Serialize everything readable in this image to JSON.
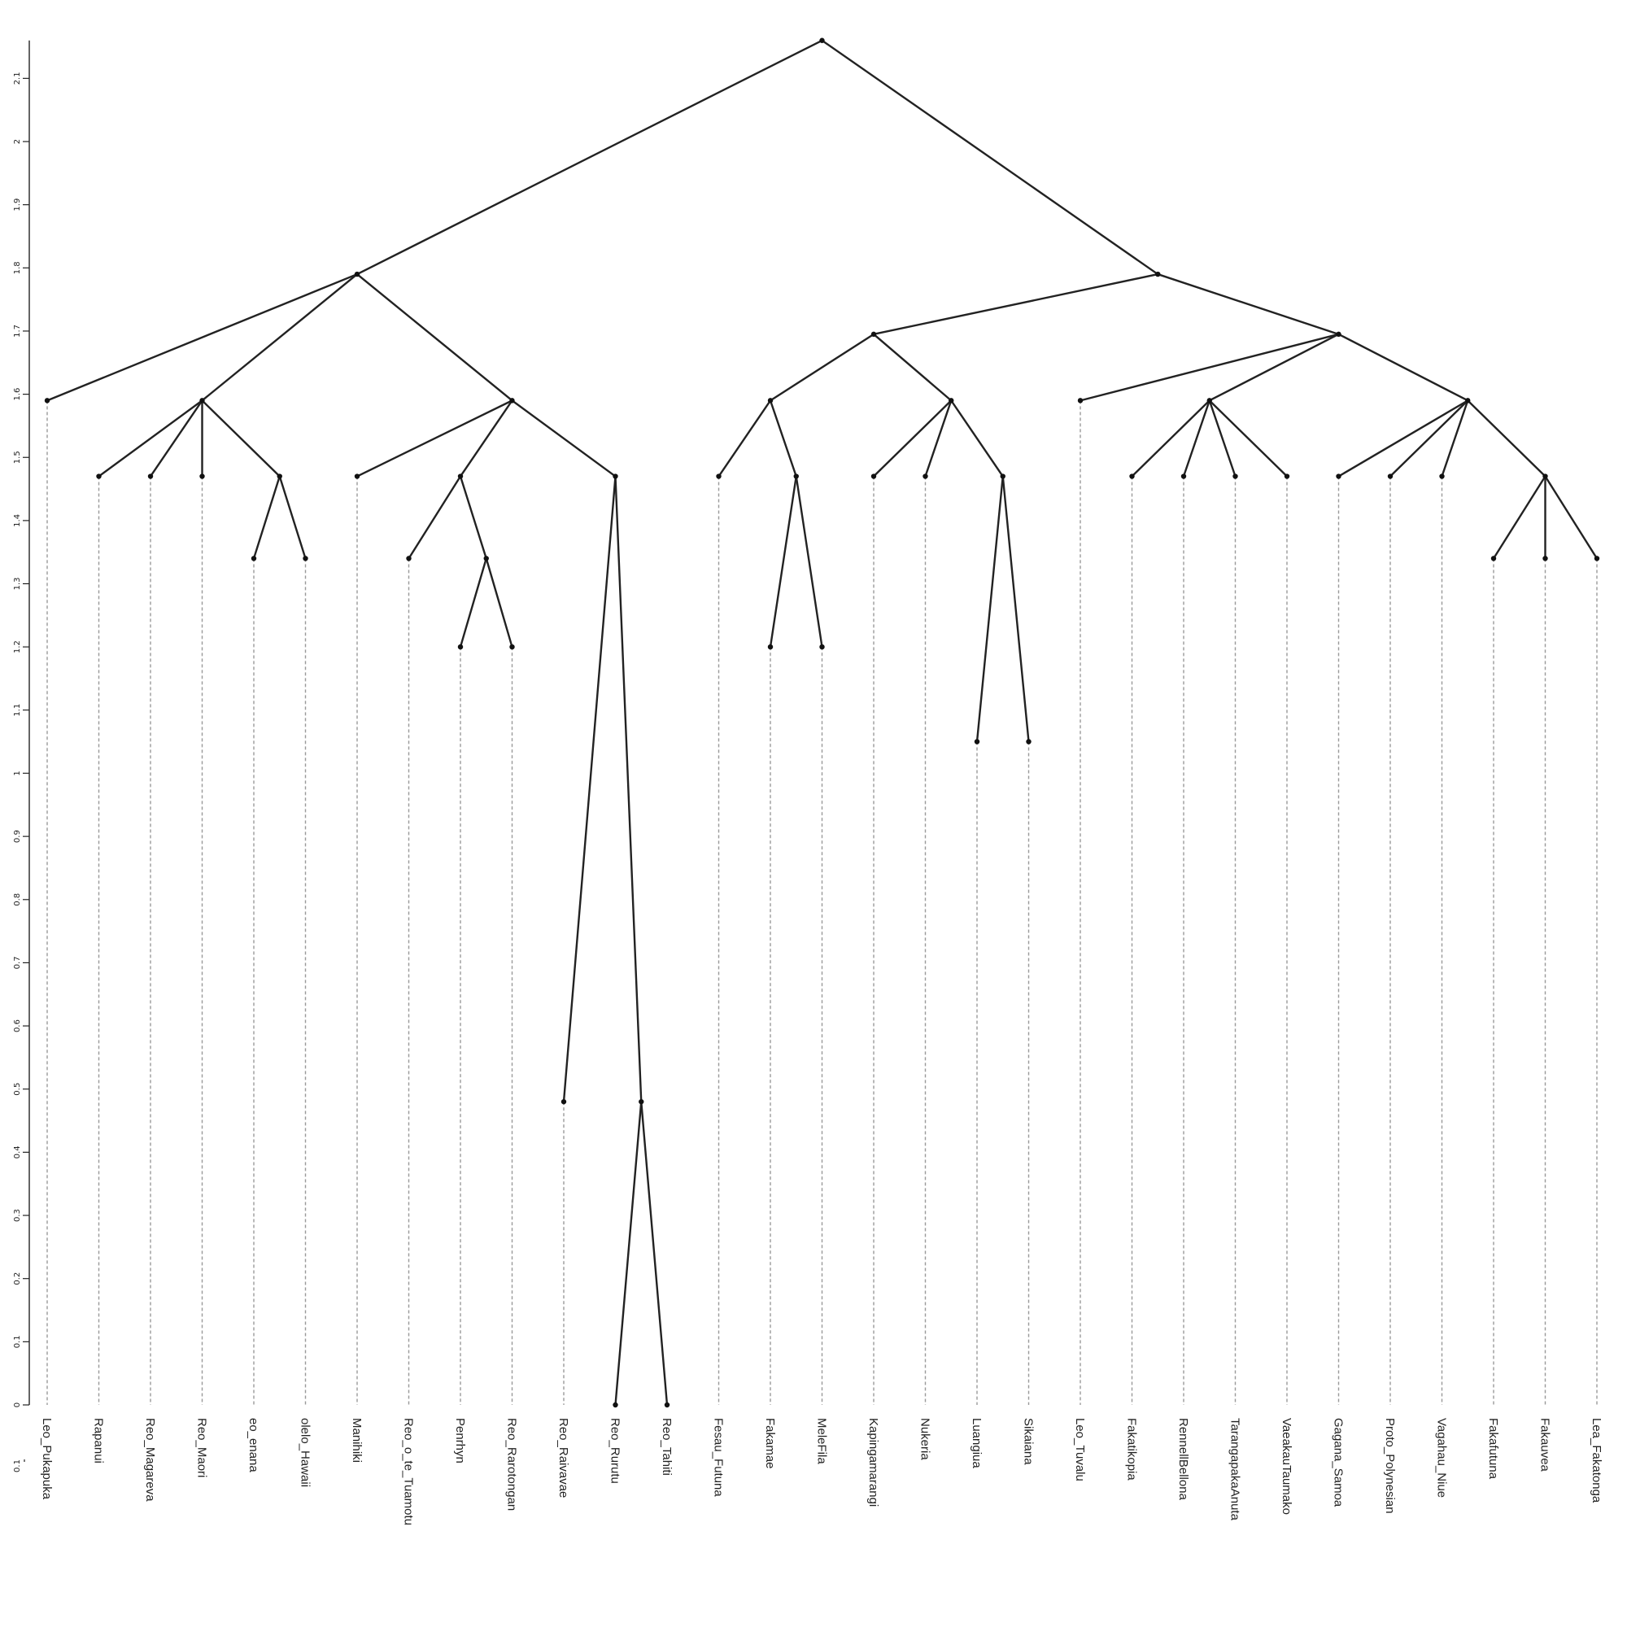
{
  "chart_data": {
    "type": "dendrogram",
    "yaxis": {
      "range": [
        0,
        2.16
      ],
      "ticks": [
        "0",
        "0.1",
        "0.2",
        "0.3",
        "0.4",
        "0.5",
        "0.6",
        "0.7",
        "0.8",
        "0.9",
        "1",
        "1.1",
        "1.2",
        "1.3",
        "1.4",
        "1.5",
        "1.6",
        "1.7",
        "1.8",
        "1.9",
        "2",
        "2.1"
      ],
      "extra_label": "0.1"
    },
    "leaves": [
      {
        "label": "Leo_Pukapuka",
        "height": 1.59
      },
      {
        "label": "Rapanui",
        "height": 1.47
      },
      {
        "label": "Reo_Magareva",
        "height": 1.47
      },
      {
        "label": "Reo_Maori",
        "height": 1.47
      },
      {
        "label": "eo_enana",
        "height": 1.34
      },
      {
        "label": "olelo_Hawaii",
        "height": 1.34
      },
      {
        "label": "Manihiki",
        "height": 1.47
      },
      {
        "label": "Reo_o_te_Tuamotu",
        "height": 1.34
      },
      {
        "label": "Penrhyn",
        "height": 1.2
      },
      {
        "label": "Reo_Rarotongan",
        "height": 1.2
      },
      {
        "label": "Reo_Raivavae",
        "height": 0.48
      },
      {
        "label": "Reo_Rurutu",
        "height": 0
      },
      {
        "label": "Reo_Tahiti",
        "height": 0
      },
      {
        "label": "Fesau_Futuna",
        "height": 1.47
      },
      {
        "label": "Fakamae",
        "height": 1.2
      },
      {
        "label": "MeleFila",
        "height": 1.2
      },
      {
        "label": "Kapingamarangi",
        "height": 1.47
      },
      {
        "label": "Nukeria",
        "height": 1.47
      },
      {
        "label": "Luangiua",
        "height": 1.05
      },
      {
        "label": "Sikaiana",
        "height": 1.05
      },
      {
        "label": "Leo_Tuvalu",
        "height": 1.59
      },
      {
        "label": "Fakatikopia",
        "height": 1.47
      },
      {
        "label": "RennellBellona",
        "height": 1.47
      },
      {
        "label": "TarangapakaAnuta",
        "height": 1.47
      },
      {
        "label": "VaeakauTaumako",
        "height": 1.47
      },
      {
        "label": "Gagana_Samoa",
        "height": 1.47
      },
      {
        "label": "Proto_Polynesian",
        "height": 1.47
      },
      {
        "label": "Vagahau_Niue",
        "height": 1.47
      },
      {
        "label": "Fakafutuna",
        "height": 1.34
      },
      {
        "label": "Fakauvea",
        "height": 1.34
      },
      {
        "label": "Lea_Fakatonga",
        "height": 1.34
      }
    ],
    "internal_nodes": [
      {
        "id": "root",
        "height": 2.16,
        "children": [
          "A",
          "B"
        ]
      },
      {
        "id": "A",
        "height": 1.79,
        "children": [
          0,
          "A1",
          "A2"
        ]
      },
      {
        "id": "A1",
        "height": 1.59,
        "children": [
          1,
          2,
          3,
          "A1a"
        ]
      },
      {
        "id": "A1a",
        "height": 1.47,
        "children": [
          4,
          5
        ]
      },
      {
        "id": "A2",
        "height": 1.59,
        "children": [
          6,
          "A2a",
          "A2b"
        ]
      },
      {
        "id": "A2a",
        "height": 1.47,
        "children": [
          7,
          "A2a1"
        ]
      },
      {
        "id": "A2a1",
        "height": 1.34,
        "children": [
          8,
          9
        ]
      },
      {
        "id": "A2b",
        "height": 1.47,
        "children": [
          10,
          "A2b1"
        ]
      },
      {
        "id": "A2b1",
        "height": 0.48,
        "children": [
          11,
          12
        ]
      },
      {
        "id": "B",
        "height": 1.79,
        "children": [
          "B1",
          "B2"
        ]
      },
      {
        "id": "B1",
        "height": 1.695,
        "children": [
          "B1a",
          "B1b"
        ]
      },
      {
        "id": "B1a",
        "height": 1.59,
        "children": [
          13,
          "B1a1"
        ]
      },
      {
        "id": "B1a1",
        "height": 1.47,
        "children": [
          14,
          15
        ]
      },
      {
        "id": "B1b",
        "height": 1.59,
        "children": [
          16,
          17,
          "B1b1"
        ]
      },
      {
        "id": "B1b1",
        "height": 1.47,
        "children": [
          18,
          19
        ]
      },
      {
        "id": "B2",
        "height": 1.695,
        "children": [
          20,
          "B2a",
          "B2b"
        ]
      },
      {
        "id": "B2a",
        "height": 1.59,
        "children": [
          21,
          22,
          23,
          24
        ]
      },
      {
        "id": "B2b",
        "height": 1.59,
        "children": [
          25,
          26,
          27,
          "B2b1"
        ]
      },
      {
        "id": "B2b1",
        "height": 1.47,
        "children": [
          28,
          29,
          30
        ]
      }
    ]
  }
}
